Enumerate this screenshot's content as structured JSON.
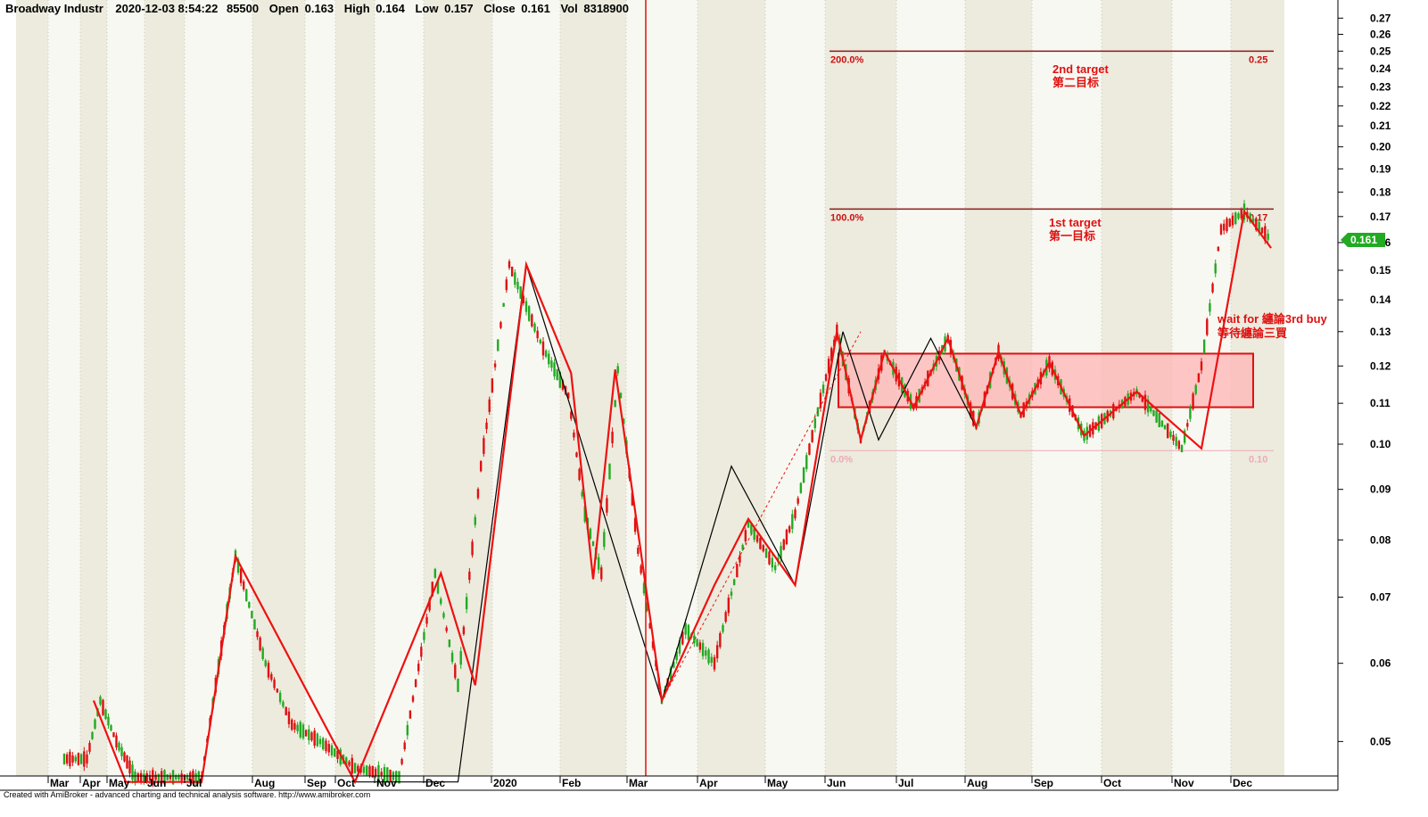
{
  "header": {
    "symbol": "Broadway Industr",
    "datetime": "2020-12-03 8:54:22",
    "code": "85500",
    "open_label": "Open",
    "open": "0.163",
    "high_label": "High",
    "high": "0.164",
    "low_label": "Low",
    "low": "0.157",
    "close_label": "Close",
    "close": "0.161",
    "vol_label": "Vol",
    "vol": "8318900"
  },
  "last_price_label": "0.161",
  "footer": "Created with AmiBroker - advanced charting and technical analysis software. http://www.amibroker.com",
  "colors": {
    "up": "#22aa22",
    "down": "#dd1111",
    "zigzag_red": "#ee1111",
    "zigzag_black": "#000000",
    "fib": "#8b1a1a",
    "box_fill": "#ffb6b6",
    "box_stroke": "#e01010",
    "last_price_bg": "#22aa22"
  },
  "chart_data": {
    "type": "candlestick",
    "scale": "log",
    "ylim": [
      0.046,
      0.275
    ],
    "y_ticks": [
      "0.27",
      "0.26",
      "0.25",
      "0.24",
      "0.23",
      "0.22",
      "0.21",
      "0.20",
      "0.19",
      "0.18",
      "0.17",
      "0.16",
      "0.15",
      "0.14",
      "0.13",
      "0.12",
      "0.11",
      "0.10",
      "0.09",
      "0.08",
      "0.07",
      "0.06",
      "0.05"
    ],
    "x_months": [
      "Mar",
      "Apr",
      "May",
      "Jun",
      "Jul",
      "Aug",
      "Sep",
      "Oct",
      "Nov",
      "Dec",
      "2020",
      "Feb",
      "Mar",
      "Apr",
      "May",
      "Jun",
      "Jul",
      "Aug",
      "Sep",
      "Oct",
      "Nov",
      "Dec"
    ],
    "fib_levels": [
      {
        "pct": "200.0%",
        "price": 0.25,
        "price_label": "0.25"
      },
      {
        "pct": "100.0%",
        "price": 0.173,
        "price_label": "0.17"
      },
      {
        "pct": "0.0%",
        "price": 0.0985,
        "price_label": "0.10"
      }
    ],
    "consolidation_box": {
      "from": "Jun 2020",
      "to": "Dec 2020",
      "low": 0.109,
      "high": 0.1235
    },
    "event_line": "Mar 2020",
    "zigzag_red": [
      {
        "x": "Apr 2019",
        "y": 0.055
      },
      {
        "x": "May 2019",
        "y": 0.045
      },
      {
        "x": "Jul 2019",
        "y": 0.045
      },
      {
        "x": "Jul 2019",
        "y": 0.077
      },
      {
        "x": "Oct 2019",
        "y": 0.045
      },
      {
        "x": "Dec 2019",
        "y": 0.074
      },
      {
        "x": "Dec 2019",
        "y": 0.057
      },
      {
        "x": "Jan 2020",
        "y": 0.152
      },
      {
        "x": "Feb 2020",
        "y": 0.118
      },
      {
        "x": "Feb 2020",
        "y": 0.073
      },
      {
        "x": "Feb 2020",
        "y": 0.119
      },
      {
        "x": "Mar 2020",
        "y": 0.055
      },
      {
        "x": "Apr 2020",
        "y": 0.072
      },
      {
        "x": "Apr 2020",
        "y": 0.084
      },
      {
        "x": "May 2020",
        "y": 0.072
      },
      {
        "x": "Jun 2020",
        "y": 0.13
      },
      {
        "x": "Jun 2020",
        "y": 0.101
      },
      {
        "x": "Jun 2020",
        "y": 0.124
      },
      {
        "x": "Jul 2020",
        "y": 0.109
      },
      {
        "x": "Jul 2020",
        "y": 0.128
      },
      {
        "x": "Aug 2020",
        "y": 0.104
      },
      {
        "x": "Aug 2020",
        "y": 0.124
      },
      {
        "x": "Aug 2020",
        "y": 0.107
      },
      {
        "x": "Sep 2020",
        "y": 0.121
      },
      {
        "x": "Sep 2020",
        "y": 0.102
      },
      {
        "x": "Oct 2020",
        "y": 0.113
      },
      {
        "x": "Nov 2020",
        "y": 0.099
      },
      {
        "x": "Dec 2020",
        "y": 0.172
      },
      {
        "x": "Dec 2020",
        "y": 0.158
      }
    ],
    "zigzag_black": [
      {
        "x": "Apr 2019",
        "y": 0.055
      },
      {
        "x": "May 2019",
        "y": 0.045
      },
      {
        "x": "Jul 2019",
        "y": 0.045
      },
      {
        "x": "Jul 2019",
        "y": 0.077
      },
      {
        "x": "Oct 2019",
        "y": 0.045
      },
      {
        "x": "Dec 2019",
        "y": 0.045
      },
      {
        "x": "Jan 2020",
        "y": 0.152
      },
      {
        "x": "Mar 2020",
        "y": 0.055
      },
      {
        "x": "Apr 2020",
        "y": 0.095
      },
      {
        "x": "May 2020",
        "y": 0.072
      },
      {
        "x": "Jun 2020",
        "y": 0.13
      },
      {
        "x": "Jun 2020",
        "y": 0.101
      },
      {
        "x": "Jul 2020",
        "y": 0.128
      },
      {
        "x": "Aug 2020",
        "y": 0.104
      },
      {
        "x": "Aug 2020",
        "y": 0.124
      },
      {
        "x": "Aug 2020",
        "y": 0.107
      },
      {
        "x": "Sep 2020",
        "y": 0.121
      },
      {
        "x": "Sep 2020",
        "y": 0.102
      },
      {
        "x": "Oct 2020",
        "y": 0.113
      },
      {
        "x": "Nov 2020",
        "y": 0.099
      },
      {
        "x": "Dec 2020",
        "y": 0.172
      },
      {
        "x": "Dec 2020",
        "y": 0.158
      }
    ],
    "dashed_trend": [
      {
        "x": "Mar 2020",
        "y": 0.055
      },
      {
        "x": "Jun 2020",
        "y": 0.13
      }
    ],
    "price_path": [
      {
        "x": "Mar 2019",
        "y": 0.048
      },
      {
        "x": "Apr 2019",
        "y": 0.048
      },
      {
        "x": "Apr 2019",
        "y": 0.055
      },
      {
        "x": "May 2019",
        "y": 0.05
      },
      {
        "x": "May 2019",
        "y": 0.046
      },
      {
        "x": "Jun 2019",
        "y": 0.046
      },
      {
        "x": "Jul 2019",
        "y": 0.046
      },
      {
        "x": "Jul 2019",
        "y": 0.077
      },
      {
        "x": "Aug 2019",
        "y": 0.06
      },
      {
        "x": "Aug 2019",
        "y": 0.052
      },
      {
        "x": "Sep 2019",
        "y": 0.05
      },
      {
        "x": "Oct 2019",
        "y": 0.047
      },
      {
        "x": "Nov 2019",
        "y": 0.046
      },
      {
        "x": "Dec 2019",
        "y": 0.074
      },
      {
        "x": "Dec 2019",
        "y": 0.057
      },
      {
        "x": "Dec 2019",
        "y": 0.095
      },
      {
        "x": "Jan 2020",
        "y": 0.152
      },
      {
        "x": "Jan 2020",
        "y": 0.125
      },
      {
        "x": "Feb 2020",
        "y": 0.112
      },
      {
        "x": "Feb 2020",
        "y": 0.085
      },
      {
        "x": "Feb 2020",
        "y": 0.074
      },
      {
        "x": "Feb 2020",
        "y": 0.119
      },
      {
        "x": "Mar 2020",
        "y": 0.078
      },
      {
        "x": "Mar 2020",
        "y": 0.055
      },
      {
        "x": "Mar 2020",
        "y": 0.065
      },
      {
        "x": "Apr 2020",
        "y": 0.06
      },
      {
        "x": "Apr 2020",
        "y": 0.083
      },
      {
        "x": "May 2020",
        "y": 0.075
      },
      {
        "x": "May 2020",
        "y": 0.085
      },
      {
        "x": "May 2020",
        "y": 0.105
      },
      {
        "x": "Jun 2020",
        "y": 0.13
      },
      {
        "x": "Jun 2020",
        "y": 0.101
      },
      {
        "x": "Jun 2020",
        "y": 0.124
      },
      {
        "x": "Jul 2020",
        "y": 0.109
      },
      {
        "x": "Jul 2020",
        "y": 0.128
      },
      {
        "x": "Aug 2020",
        "y": 0.104
      },
      {
        "x": "Aug 2020",
        "y": 0.124
      },
      {
        "x": "Aug 2020",
        "y": 0.107
      },
      {
        "x": "Sep 2020",
        "y": 0.121
      },
      {
        "x": "Sep 2020",
        "y": 0.102
      },
      {
        "x": "Oct 2020",
        "y": 0.113
      },
      {
        "x": "Nov 2020",
        "y": 0.099
      },
      {
        "x": "Nov 2020",
        "y": 0.12
      },
      {
        "x": "Nov 2020",
        "y": 0.165
      },
      {
        "x": "Dec 2020",
        "y": 0.172
      },
      {
        "x": "Dec 2020",
        "y": 0.161
      }
    ],
    "annotations": {
      "target2_en": "2nd target",
      "target2_zh": "第二目标",
      "target1_en": "1st target",
      "target1_zh": "第一目标",
      "wait_en": "wait for 纏論3rd buy",
      "wait_zh": "等待纏論三買"
    }
  }
}
